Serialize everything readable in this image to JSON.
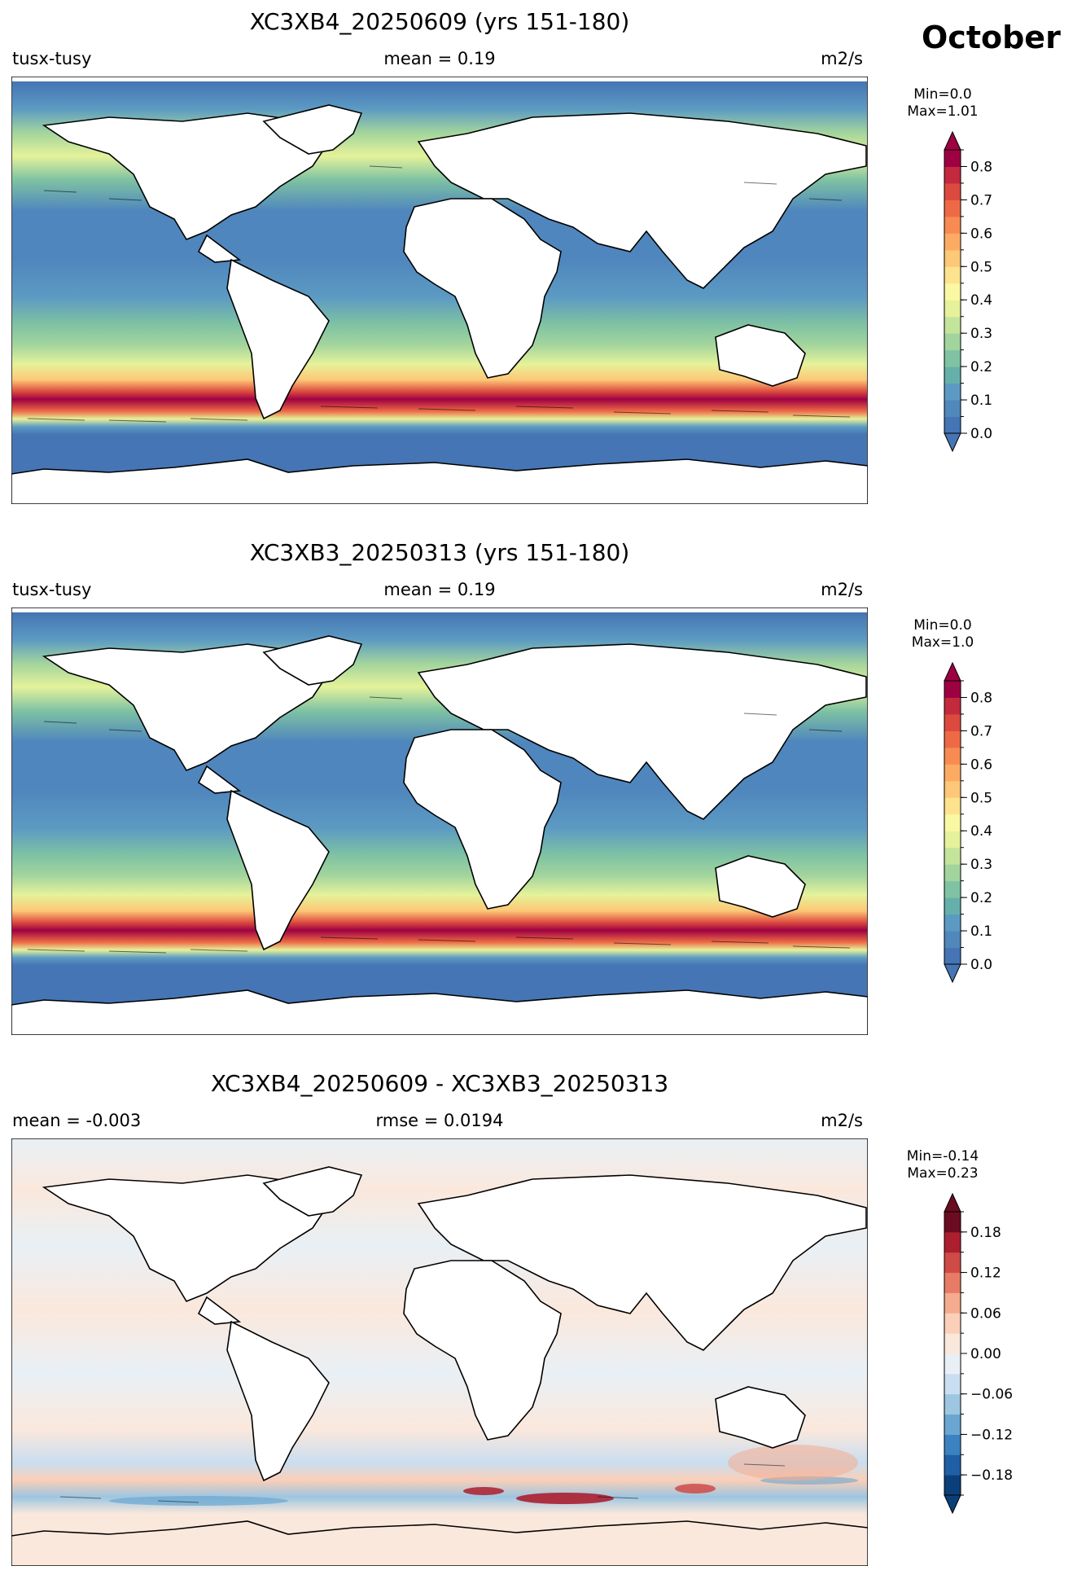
{
  "page": {
    "month_label": "October"
  },
  "panels": [
    {
      "title": "XC3XB4_20250609 (yrs 151-180)",
      "left_label": "tusx-tusy",
      "center_label": "mean = 0.19",
      "right_label": "m2/s",
      "min_label": "Min=0.0",
      "max_label": "Max=1.01"
    },
    {
      "title": "XC3XB3_20250313 (yrs 151-180)",
      "left_label": "tusx-tusy",
      "center_label": "mean = 0.19",
      "right_label": "m2/s",
      "min_label": "Min=0.0",
      "max_label": "Max=1.0"
    },
    {
      "title": "XC3XB4_20250609 - XC3XB3_20250313",
      "left_label": "mean = -0.003",
      "center_label": "rmse = 0.0194",
      "right_label": "m2/s",
      "min_label": "Min=-0.14",
      "max_label": "Max=0.23"
    }
  ],
  "chart_data": [
    {
      "type": "heatmap",
      "title": "XC3XB4_20250609 (yrs 151-180)",
      "variable": "tusx-tusy",
      "units": "m2/s",
      "mean": 0.19,
      "min": 0.0,
      "max": 1.01,
      "colormap": "RdYlBu_r",
      "colorbar": {
        "levels": [
          0.0,
          0.05,
          0.1,
          0.15,
          0.2,
          0.25,
          0.3,
          0.35,
          0.4,
          0.45,
          0.5,
          0.55,
          0.6,
          0.65,
          0.7,
          0.75,
          0.8,
          0.85
        ],
        "tick_values": [
          0.0,
          0.1,
          0.2,
          0.3,
          0.4,
          0.5,
          0.6,
          0.7,
          0.8
        ],
        "tick_labels": [
          "0.0",
          "0.1",
          "0.2",
          "0.3",
          "0.4",
          "0.5",
          "0.6",
          "0.7",
          "0.8"
        ],
        "colors": [
          "#4575b4",
          "#5088bc",
          "#5c9ac3",
          "#66b0ab",
          "#7fc3a3",
          "#a2d49d",
          "#c5e49b",
          "#e5f29a",
          "#fbf8a3",
          "#fee38e",
          "#fdc877",
          "#fcab63",
          "#f88b52",
          "#ee6a45",
          "#dc4a3f",
          "#c42a3d",
          "#9e0142"
        ],
        "extend": "both"
      }
    },
    {
      "type": "heatmap",
      "title": "XC3XB3_20250313 (yrs 151-180)",
      "variable": "tusx-tusy",
      "units": "m2/s",
      "mean": 0.19,
      "min": 0.0,
      "max": 1.0,
      "colormap": "RdYlBu_r",
      "colorbar": {
        "levels": [
          0.0,
          0.05,
          0.1,
          0.15,
          0.2,
          0.25,
          0.3,
          0.35,
          0.4,
          0.45,
          0.5,
          0.55,
          0.6,
          0.65,
          0.7,
          0.75,
          0.8,
          0.85
        ],
        "tick_values": [
          0.0,
          0.1,
          0.2,
          0.3,
          0.4,
          0.5,
          0.6,
          0.7,
          0.8
        ],
        "tick_labels": [
          "0.0",
          "0.1",
          "0.2",
          "0.3",
          "0.4",
          "0.5",
          "0.6",
          "0.7",
          "0.8"
        ],
        "colors": [
          "#4575b4",
          "#5088bc",
          "#5c9ac3",
          "#66b0ab",
          "#7fc3a3",
          "#a2d49d",
          "#c5e49b",
          "#e5f29a",
          "#fbf8a3",
          "#fee38e",
          "#fdc877",
          "#fcab63",
          "#f88b52",
          "#ee6a45",
          "#dc4a3f",
          "#c42a3d",
          "#9e0142"
        ],
        "extend": "both"
      }
    },
    {
      "type": "heatmap",
      "title": "XC3XB4_20250609 - XC3XB3_20250313",
      "units": "m2/s",
      "mean": -0.003,
      "rmse": 0.0194,
      "min": -0.14,
      "max": 0.23,
      "colormap": "RdBu_r",
      "colorbar": {
        "levels": [
          -0.21,
          -0.18,
          -0.15,
          -0.12,
          -0.09,
          -0.06,
          -0.03,
          0.0,
          0.03,
          0.06,
          0.09,
          0.12,
          0.15,
          0.18,
          0.21
        ],
        "tick_values": [
          -0.18,
          -0.12,
          -0.06,
          0.0,
          0.06,
          0.12,
          0.18
        ],
        "tick_labels": [
          "−0.18",
          "−0.12",
          "−0.06",
          "0.00",
          "0.06",
          "0.12",
          "0.18"
        ],
        "colors": [
          "#0a3f7a",
          "#1f5fa6",
          "#3b83c0",
          "#6aa6d1",
          "#9dc6e1",
          "#c9def0",
          "#e8f0f6",
          "#fbe8dc",
          "#fbcfb8",
          "#f5ab8e",
          "#e67c66",
          "#cf4b47",
          "#ac1f2f",
          "#6b0c21"
        ],
        "extend": "both"
      }
    }
  ]
}
